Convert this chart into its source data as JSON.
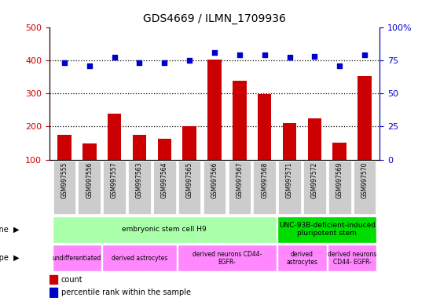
{
  "title": "GDS4669 / ILMN_1709936",
  "samples": [
    "GSM997555",
    "GSM997556",
    "GSM997557",
    "GSM997563",
    "GSM997564",
    "GSM997565",
    "GSM997566",
    "GSM997567",
    "GSM997568",
    "GSM997571",
    "GSM997572",
    "GSM997569",
    "GSM997570"
  ],
  "counts": [
    175,
    148,
    238,
    175,
    163,
    200,
    402,
    338,
    298,
    210,
    225,
    150,
    352
  ],
  "percentiles": [
    73,
    71,
    77,
    73,
    73,
    75,
    81,
    79,
    79,
    77,
    78,
    71,
    79
  ],
  "ylim_left": [
    100,
    500
  ],
  "ylim_right": [
    0,
    100
  ],
  "yticks_left": [
    100,
    200,
    300,
    400,
    500
  ],
  "yticks_right": [
    0,
    25,
    50,
    75,
    100
  ],
  "cell_line_groups": [
    {
      "label": "embryonic stem cell H9",
      "start": 0,
      "end": 9,
      "color": "#AAFFAA"
    },
    {
      "label": "UNC-93B-deficient-induced\npluripotent stem",
      "start": 9,
      "end": 13,
      "color": "#00DD00"
    }
  ],
  "cell_type_groups": [
    {
      "label": "undifferentiated",
      "start": 0,
      "end": 2,
      "color": "#FF88FF"
    },
    {
      "label": "derived astrocytes",
      "start": 2,
      "end": 5,
      "color": "#FF88FF"
    },
    {
      "label": "derived neurons CD44-\nEGFR-",
      "start": 5,
      "end": 9,
      "color": "#FF88FF"
    },
    {
      "label": "derived\nastrocytes",
      "start": 9,
      "end": 11,
      "color": "#FF88FF"
    },
    {
      "label": "derived neurons\nCD44- EGFR-",
      "start": 11,
      "end": 13,
      "color": "#FF88FF"
    }
  ],
  "bar_color": "#CC0000",
  "dot_color": "#0000CC",
  "tick_label_color_left": "#CC0000",
  "tick_label_color_right": "#0000CC",
  "xtick_bg_color": "#CCCCCC",
  "gridline_color": "black",
  "gridline_style": "dotted"
}
